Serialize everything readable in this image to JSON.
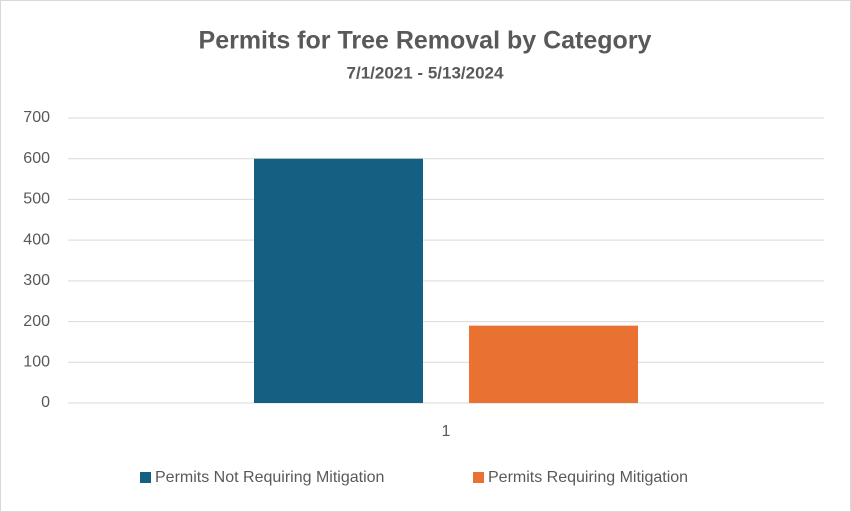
{
  "chart_data": {
    "type": "bar",
    "title": "Permits for Tree Removal by Category",
    "subtitle": "7/1/2021 - 5/13/2024",
    "categories": [
      "1"
    ],
    "series": [
      {
        "name": "Permits Not Requiring Mitigation",
        "color": "#156082",
        "values": [
          600
        ]
      },
      {
        "name": "Permits Requiring Mitigation",
        "color": "#e97132",
        "values": [
          190
        ]
      }
    ],
    "ylim": [
      0,
      700
    ],
    "yticks": [
      0,
      100,
      200,
      300,
      400,
      500,
      600,
      700
    ],
    "grid": true,
    "legend": "bottom"
  }
}
